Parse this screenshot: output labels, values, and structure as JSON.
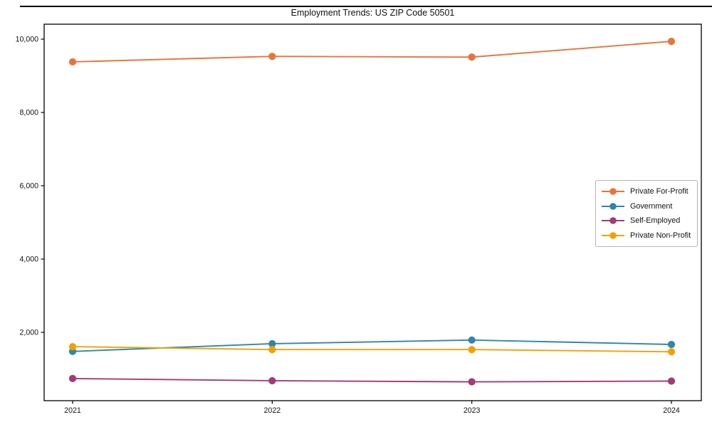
{
  "chart_data": {
    "type": "line",
    "title": "Employment Trends: US ZIP Code 50501",
    "x": [
      2021,
      2022,
      2023,
      2024
    ],
    "series": [
      {
        "name": "Private For-Profit",
        "color": "#E8743B",
        "values": [
          9380,
          9530,
          9510,
          9940
        ]
      },
      {
        "name": "Government",
        "color": "#2E87A8",
        "values": [
          1480,
          1690,
          1790,
          1670
        ]
      },
      {
        "name": "Self-Employed",
        "color": "#A33B74",
        "values": [
          740,
          680,
          650,
          670
        ]
      },
      {
        "name": "Private Non-Profit",
        "color": "#F2A104",
        "values": [
          1610,
          1530,
          1530,
          1470
        ]
      }
    ],
    "xlabel": "",
    "ylabel": "",
    "yticks": [
      2000,
      4000,
      6000,
      8000,
      10000
    ],
    "ylim": [
      136,
      10408
    ],
    "grid": false,
    "legend_position": "center-right",
    "marker": "circle",
    "axis_color": "#000000",
    "tick_label_color": "#111111"
  }
}
